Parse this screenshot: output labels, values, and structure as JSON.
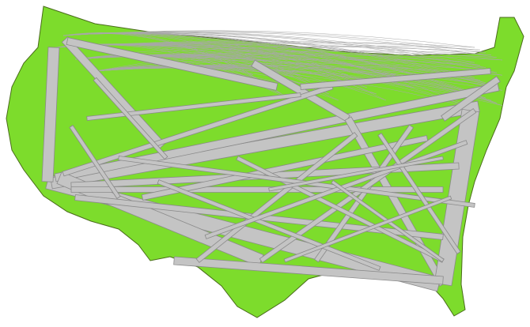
{
  "map": {
    "subject": "flow-map-united-states",
    "region_name": "",
    "colors": {
      "land": "#7ddc2c",
      "land_outline": "#4a6b1c",
      "flow_fill": "#c4c4c4",
      "flow_outline": "#8a8a8a",
      "thin_flow": "#a8a8a8",
      "background": "#ffffff"
    },
    "labels": []
  }
}
